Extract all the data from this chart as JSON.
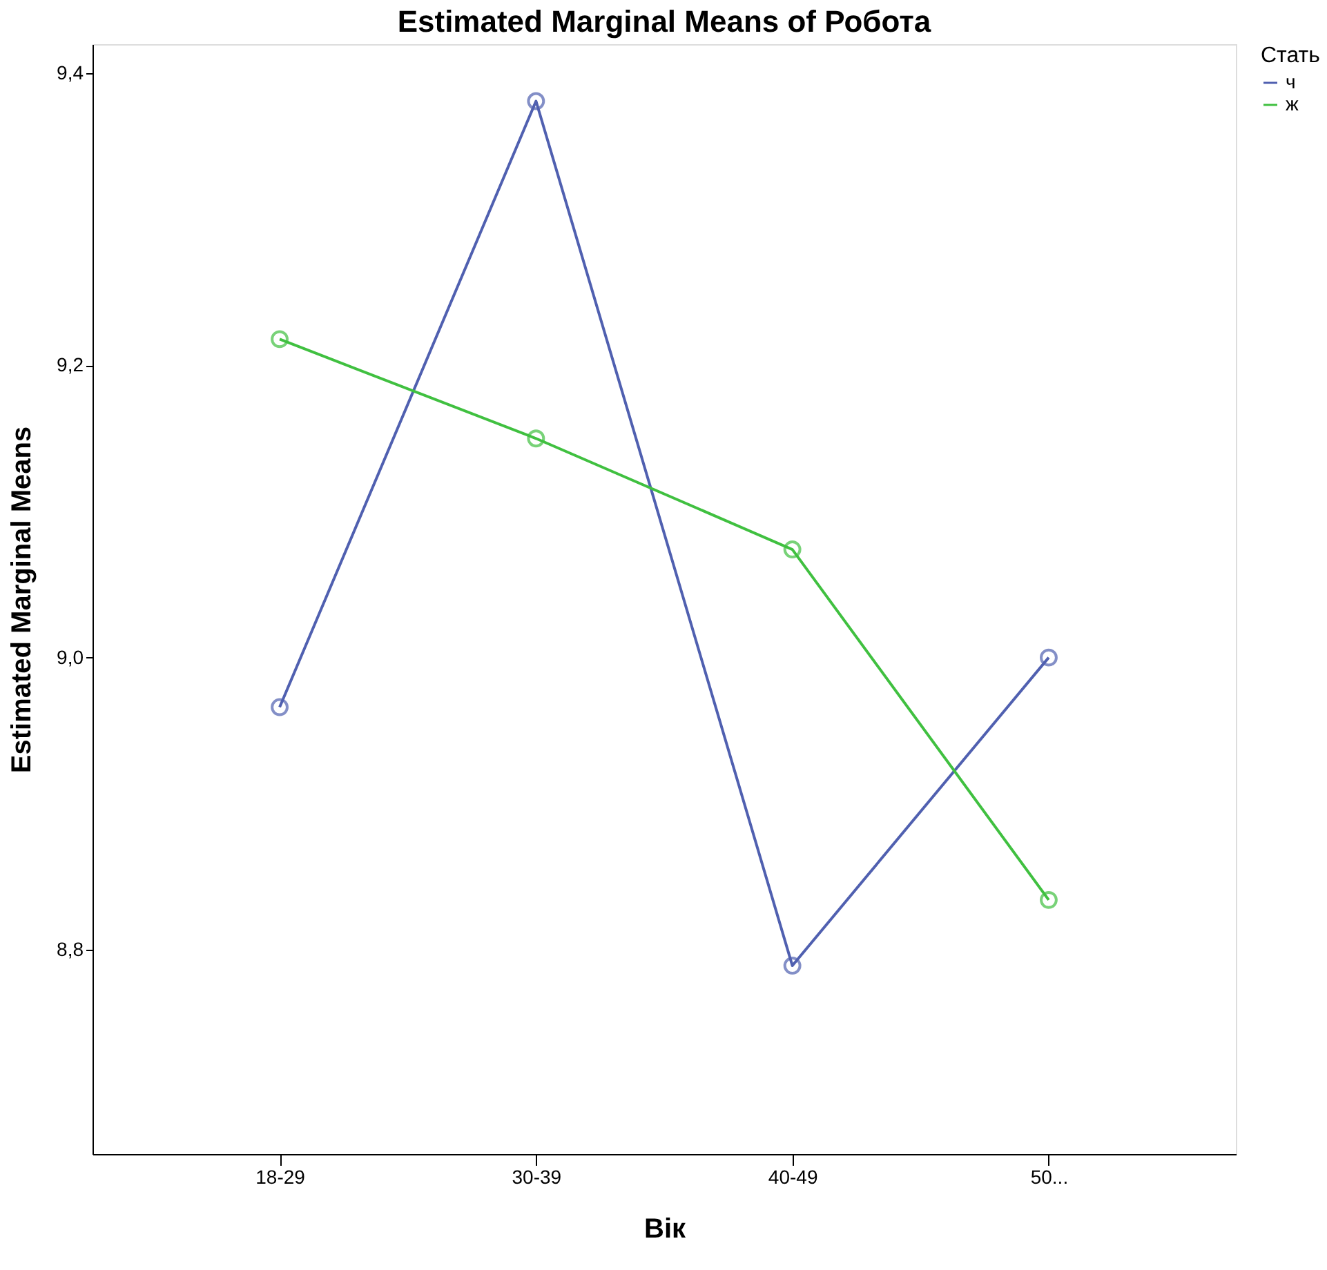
{
  "chart_data": {
    "type": "line",
    "title": "Estimated Marginal Means of Робота",
    "xlabel": "Вік",
    "ylabel": "Estimated Marginal Means",
    "legend_title": "Стать",
    "categories": [
      "18-29",
      "30-39",
      "40-49",
      "50..."
    ],
    "series": [
      {
        "name": "ч",
        "color": "#5060b0",
        "values": [
          8.966,
          9.381,
          8.789,
          9.0
        ]
      },
      {
        "name": "ж",
        "color": "#40c040",
        "values": [
          9.218,
          9.15,
          9.074,
          8.834
        ]
      }
    ],
    "ylim": [
      8.66,
      9.42
    ],
    "yticks": [
      {
        "value": 8.8,
        "label": "8,8"
      },
      {
        "value": 9.0,
        "label": "9,0"
      },
      {
        "value": 9.2,
        "label": "9,2"
      },
      {
        "value": 9.4,
        "label": "9,4"
      }
    ],
    "marker": "circle",
    "line_style": "solid",
    "grid": false,
    "legend": "top right"
  }
}
